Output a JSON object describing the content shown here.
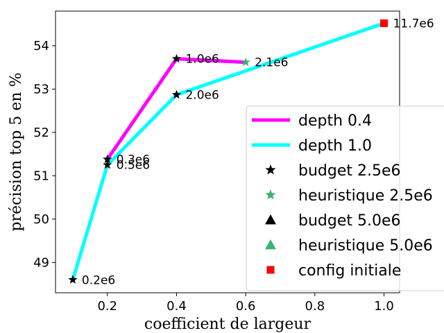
{
  "chart_data": {
    "type": "line",
    "xlabel": "coefficient de largeur",
    "ylabel": "précision top 5 en %",
    "xlim": [
      0.05,
      1.045
    ],
    "ylim": [
      48.3,
      54.8
    ],
    "x_ticks": [
      0.2,
      0.4,
      0.6,
      0.8,
      1.0
    ],
    "x_tick_labels": [
      "0.2",
      "0.4",
      "0.6",
      "0.8",
      "1.0"
    ],
    "y_ticks": [
      49,
      50,
      51,
      52,
      53,
      54
    ],
    "y_tick_labels": [
      "49",
      "50",
      "51",
      "52",
      "53",
      "54"
    ],
    "grid": false,
    "legend_position": "lower-right",
    "series": [
      {
        "name": "depth 0.4",
        "kind": "line",
        "color": "#ff00ff",
        "x": [
          0.2,
          0.4,
          0.6
        ],
        "y": [
          51.38,
          53.7,
          53.62
        ]
      },
      {
        "name": "depth 1.0",
        "kind": "line",
        "color": "#00ffff",
        "x": [
          0.1,
          0.2,
          0.4,
          1.0
        ],
        "y": [
          48.6,
          51.25,
          52.87,
          54.52
        ]
      },
      {
        "name": "budget 2.5e6",
        "kind": "marker",
        "marker": "star",
        "color": "#000000",
        "x": [
          0.1,
          0.2,
          0.2,
          0.4,
          0.4
        ],
        "y": [
          48.6,
          51.25,
          51.38,
          52.87,
          53.7
        ]
      },
      {
        "name": "heuristique 2.5e6",
        "kind": "marker",
        "marker": "star",
        "color": "#3cb371",
        "x": [
          0.6
        ],
        "y": [
          53.62
        ]
      },
      {
        "name": "budget 5.0e6",
        "kind": "marker",
        "marker": "triangle",
        "color": "#000000",
        "x": [],
        "y": []
      },
      {
        "name": "heuristique 5.0e6",
        "kind": "marker",
        "marker": "triangle",
        "color": "#3cb371",
        "x": [],
        "y": []
      },
      {
        "name": "config initiale",
        "kind": "marker",
        "marker": "square",
        "color": "#ff0000",
        "x": [
          1.0
        ],
        "y": [
          54.52
        ]
      }
    ],
    "annotations": [
      {
        "text": "0.2e6",
        "x": 0.1,
        "y": 48.6
      },
      {
        "text": "0.3e6",
        "x": 0.2,
        "y": 51.38
      },
      {
        "text": "0.5e6",
        "x": 0.2,
        "y": 51.25
      },
      {
        "text": "1.0e6",
        "x": 0.4,
        "y": 53.7
      },
      {
        "text": "2.0e6",
        "x": 0.4,
        "y": 52.87
      },
      {
        "text": "2.1e6",
        "x": 0.6,
        "y": 53.62
      },
      {
        "text": "11.7e6",
        "x": 1.0,
        "y": 54.52
      }
    ]
  }
}
